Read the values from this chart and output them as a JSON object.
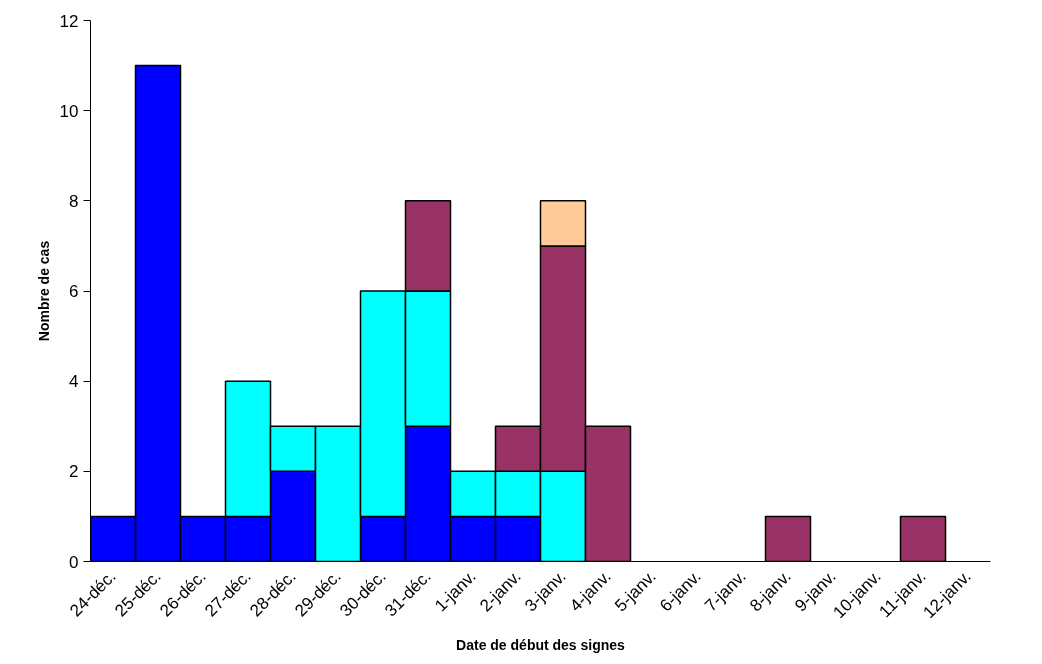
{
  "chart_data": {
    "type": "bar",
    "xlabel": "Date de début des signes",
    "ylabel": "Nombre de cas",
    "categories": [
      "24-déc.",
      "25-déc.",
      "26-déc.",
      "27-déc.",
      "28-déc.",
      "29-déc.",
      "30-déc.",
      "31-déc.",
      "1-janv.",
      "2-janv.",
      "3-janv.",
      "4-janv.",
      "5-janv.",
      "6-janv.",
      "7-janv.",
      "8-janv.",
      "9-janv.",
      "10-janv.",
      "11-janv.",
      "12-janv."
    ],
    "stacked": true,
    "series": [
      {
        "color": "#0000ff",
        "values": [
          1,
          11,
          1,
          1,
          2,
          0,
          1,
          3,
          1,
          1,
          0,
          0,
          0,
          0,
          0,
          0,
          0,
          0,
          0,
          0
        ]
      },
      {
        "color": "#00ffff",
        "values": [
          0,
          0,
          0,
          3,
          1,
          3,
          5,
          3,
          1,
          1,
          2,
          0,
          0,
          0,
          0,
          0,
          0,
          0,
          0,
          0
        ]
      },
      {
        "color": "#993366",
        "values": [
          0,
          0,
          0,
          0,
          0,
          0,
          0,
          2,
          0,
          1,
          5,
          3,
          0,
          0,
          0,
          1,
          0,
          0,
          1,
          0
        ]
      },
      {
        "color": "#ffcc99",
        "values": [
          0,
          0,
          0,
          0,
          0,
          0,
          0,
          0,
          0,
          0,
          1,
          0,
          0,
          0,
          0,
          0,
          0,
          0,
          0,
          0
        ]
      }
    ],
    "ylim": [
      0,
      12
    ],
    "yticks": [
      0,
      2,
      4,
      6,
      8,
      10,
      12
    ],
    "grid": false
  }
}
